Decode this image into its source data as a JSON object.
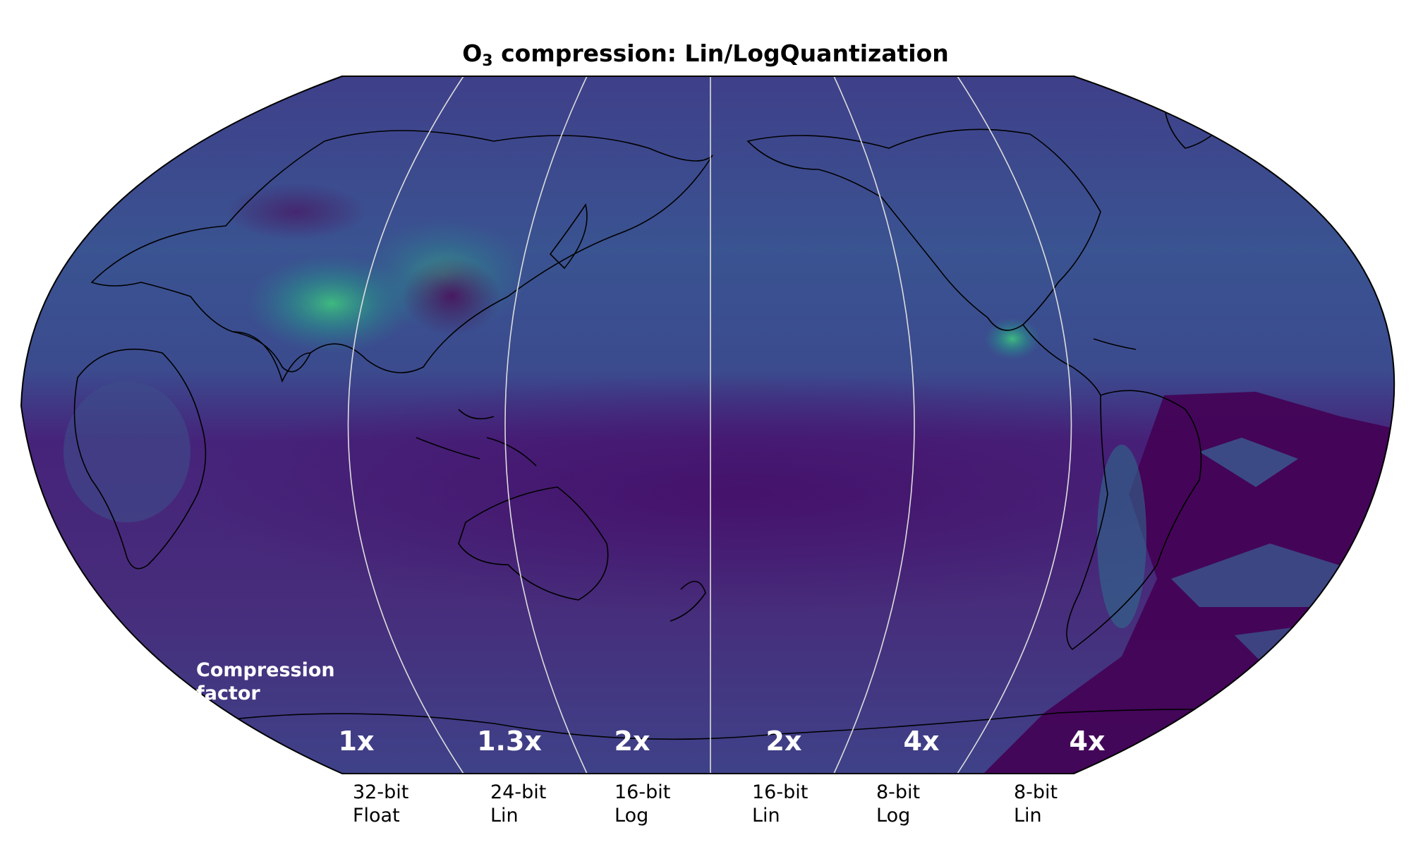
{
  "title": {
    "prefix": "O",
    "subscript": "3",
    "text": " compression: Lin/LogQuantization"
  },
  "compression_label": {
    "line1": "Compression",
    "line2": "factor"
  },
  "sections": [
    {
      "factor": "1x",
      "bits": "32-bit",
      "method": "Float"
    },
    {
      "factor": "1.3x",
      "bits": "24-bit",
      "method": "Lin"
    },
    {
      "factor": "2x",
      "bits": "16-bit",
      "method": "Log"
    },
    {
      "factor": "2x",
      "bits": "16-bit",
      "method": "Lin"
    },
    {
      "factor": "4x",
      "bits": "8-bit",
      "method": "Log"
    },
    {
      "factor": "4x",
      "bits": "8-bit",
      "method": "Lin"
    }
  ],
  "colors": {
    "ocean_base": "#3b4a8c",
    "low_ozone": "#44034f",
    "high_ozone": "#35b779",
    "meridian": "#dcdcdc",
    "coast": "#000000"
  },
  "colormap": "viridis",
  "projection": "Robinson"
}
